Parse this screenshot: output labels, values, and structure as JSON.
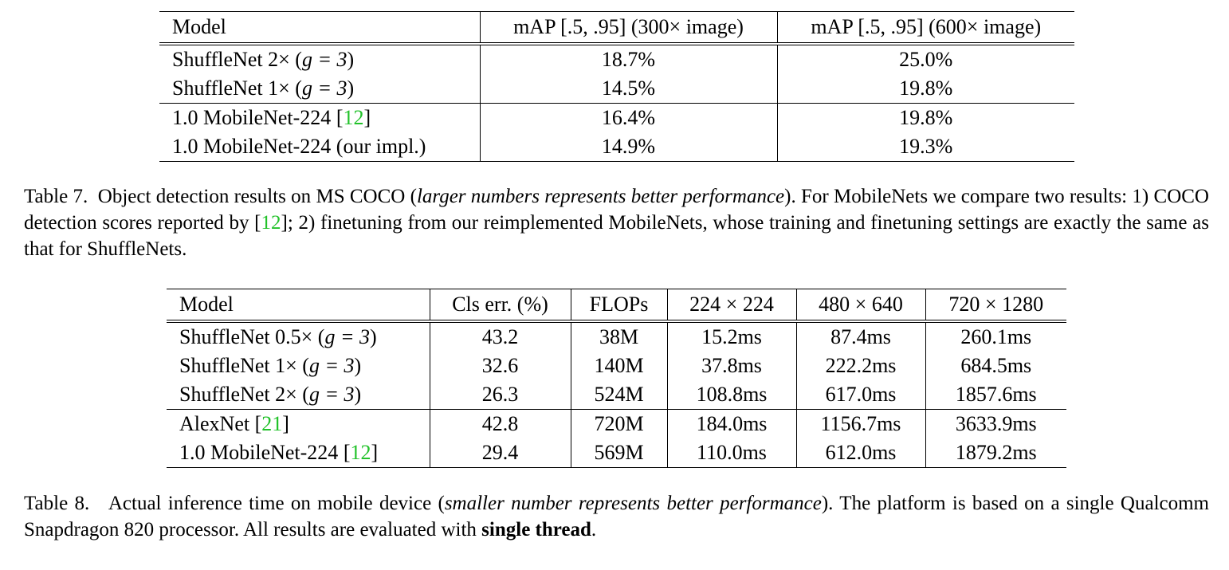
{
  "table7": {
    "headers": [
      "Model",
      "mAP [.5, .95] (300× image)",
      "mAP [.5, .95] (600× image)"
    ],
    "rows": [
      {
        "model_name": "ShuffleNet 2×",
        "g_eq": "g = 3",
        "v1": "18.7%",
        "v2": "25.0%"
      },
      {
        "model_name": "ShuffleNet 1×",
        "g_eq": "g = 3",
        "v1": "14.5%",
        "v2": "19.8%"
      },
      {
        "model_name": "1.0 MobileNet-224",
        "cite": "12",
        "v1": "16.4%",
        "v2": "19.8%"
      },
      {
        "model_name": "1.0 MobileNet-224 (our impl.)",
        "v1": "14.9%",
        "v2": "19.3%"
      }
    ],
    "caption": {
      "label": "Table 7.",
      "text_a": "Object detection results on MS COCO (",
      "italic": "larger numbers represents better performance",
      "text_b": "). For MobileNets we compare two results: 1) COCO detection scores reported by [",
      "cite": "12",
      "text_c": "]; 2) finetuning from our reimplemented MobileNets, whose training and finetuning settings are exactly the same as that for ShuffleNets."
    }
  },
  "table8": {
    "headers": [
      "Model",
      "Cls err. (%)",
      "FLOPs",
      "224 × 224",
      "480 × 640",
      "720 × 1280"
    ],
    "rows": [
      {
        "model_name": "ShuffleNet 0.5×",
        "g_eq": "g = 3",
        "cells": [
          "43.2",
          "38M",
          "15.2ms",
          "87.4ms",
          "260.1ms"
        ]
      },
      {
        "model_name": "ShuffleNet 1×",
        "g_eq": "g = 3",
        "cells": [
          "32.6",
          "140M",
          "37.8ms",
          "222.2ms",
          "684.5ms"
        ]
      },
      {
        "model_name": "ShuffleNet 2×",
        "g_eq": "g = 3",
        "cells": [
          "26.3",
          "524M",
          "108.8ms",
          "617.0ms",
          "1857.6ms"
        ]
      },
      {
        "model_name": "AlexNet",
        "cite": "21",
        "cells": [
          "42.8",
          "720M",
          "184.0ms",
          "1156.7ms",
          "3633.9ms"
        ]
      },
      {
        "model_name": "1.0 MobileNet-224",
        "cite": "12",
        "cells": [
          "29.4",
          "569M",
          "110.0ms",
          "612.0ms",
          "1879.2ms"
        ]
      }
    ],
    "caption": {
      "label": "Table 8.",
      "text_a": "Actual inference time on mobile device (",
      "italic": "smaller number represents better performance",
      "text_b": "). The platform is based on a single Qualcomm Snapdragon 820 processor. All results are evaluated with ",
      "bold": "single thread",
      "text_c": "."
    }
  }
}
